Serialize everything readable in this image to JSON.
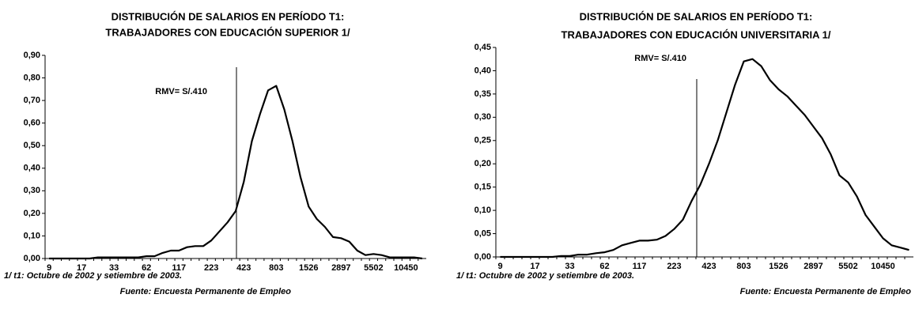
{
  "chart_data": [
    {
      "type": "line",
      "title": [
        "DISTRIBUCIÓN DE SALARIOS EN PERÍODO T1:",
        "TRABAJADORES CON EDUCACIÓN SUPERIOR 1/"
      ],
      "annotation": "RMV= S/.410",
      "footnote": "1/ t1: Octubre de 2002 y setiembre de 2003.",
      "source": "Fuente: Encuesta Permanente de Empleo",
      "categories": [
        "9",
        null,
        null,
        null,
        "17",
        null,
        null,
        null,
        "33",
        null,
        null,
        null,
        "62",
        null,
        null,
        null,
        "117",
        null,
        null,
        null,
        "223",
        null,
        null,
        null,
        "423",
        null,
        null,
        null,
        "803",
        null,
        null,
        null,
        "1526",
        null,
        null,
        null,
        "2897",
        null,
        null,
        null,
        "5502",
        null,
        null,
        null,
        "10450",
        null,
        null
      ],
      "series": [
        {
          "name": "Superior",
          "color": "#000000",
          "values": [
            0,
            0,
            0,
            0,
            0,
            0,
            0.005,
            0.005,
            0.005,
            0.005,
            0.005,
            0.005,
            0.01,
            0.01,
            0.025,
            0.035,
            0.035,
            0.05,
            0.055,
            0.055,
            0.08,
            0.12,
            0.16,
            0.21,
            0.34,
            0.52,
            0.64,
            0.745,
            0.765,
            0.66,
            0.52,
            0.36,
            0.23,
            0.175,
            0.14,
            0.095,
            0.09,
            0.075,
            0.035,
            0.015,
            0.02,
            0.015,
            0.005,
            0.005,
            0.005,
            0.005,
            0
          ]
        }
      ],
      "ylim": [
        0,
        0.9
      ],
      "yticks": [
        {
          "value": 0,
          "label": "0,00"
        },
        {
          "value": 0.1,
          "label": "0,10"
        },
        {
          "value": 0.2,
          "label": "0,20"
        },
        {
          "value": 0.3,
          "label": "0,30"
        },
        {
          "value": 0.4,
          "label": "0,40"
        },
        {
          "value": 0.5,
          "label": "0,50"
        },
        {
          "value": 0.6,
          "label": "0,60"
        },
        {
          "value": 0.7,
          "label": "0,70"
        },
        {
          "value": 0.8,
          "label": "0,80"
        },
        {
          "value": 0.9,
          "label": "0,90"
        }
      ],
      "grid": false
    },
    {
      "type": "line",
      "title": [
        "DISTRIBUCIÓN DE SALARIOS EN PERÍODO T1:",
        "TRABAJADORES CON EDUCACIÓN UNIVERSITARIA 1/"
      ],
      "annotation": "RMV= S/.410",
      "footnote": "1/ t1: Octubre de 2002 y setiembre de 2003.",
      "source": "Fuente: Encuesta Permanente de Empleo",
      "categories": [
        "9",
        null,
        null,
        null,
        "17",
        null,
        null,
        null,
        "33",
        null,
        null,
        null,
        "62",
        null,
        null,
        null,
        "117",
        null,
        null,
        null,
        "223",
        null,
        null,
        null,
        "423",
        null,
        null,
        null,
        "803",
        null,
        null,
        null,
        "1526",
        null,
        null,
        null,
        "2897",
        null,
        null,
        null,
        "5502",
        null,
        null,
        null,
        "10450",
        null,
        null,
        null
      ],
      "series": [
        {
          "name": "Universitaria",
          "color": "#000000",
          "values": [
            0,
            0,
            0,
            0,
            0,
            0,
            0,
            0.002,
            0.002,
            0.005,
            0.005,
            0.008,
            0.01,
            0.015,
            0.025,
            0.03,
            0.035,
            0.035,
            0.037,
            0.045,
            0.06,
            0.08,
            0.12,
            0.155,
            0.2,
            0.25,
            0.31,
            0.37,
            0.42,
            0.425,
            0.41,
            0.38,
            0.36,
            0.345,
            0.325,
            0.305,
            0.28,
            0.255,
            0.22,
            0.175,
            0.16,
            0.13,
            0.09,
            0.065,
            0.04,
            0.025,
            0.02,
            0.015
          ]
        }
      ],
      "ylim": [
        0,
        0.45
      ],
      "yticks": [
        {
          "value": 0,
          "label": "0,00"
        },
        {
          "value": 0.05,
          "label": "0,05"
        },
        {
          "value": 0.1,
          "label": "0,10"
        },
        {
          "value": 0.15,
          "label": "0,15"
        },
        {
          "value": 0.2,
          "label": "0,20"
        },
        {
          "value": 0.25,
          "label": "0,25"
        },
        {
          "value": 0.3,
          "label": "0,30"
        },
        {
          "value": 0.35,
          "label": "0,35"
        },
        {
          "value": 0.4,
          "label": "0,40"
        },
        {
          "value": 0.45,
          "label": "0,45"
        }
      ],
      "grid": false
    }
  ]
}
